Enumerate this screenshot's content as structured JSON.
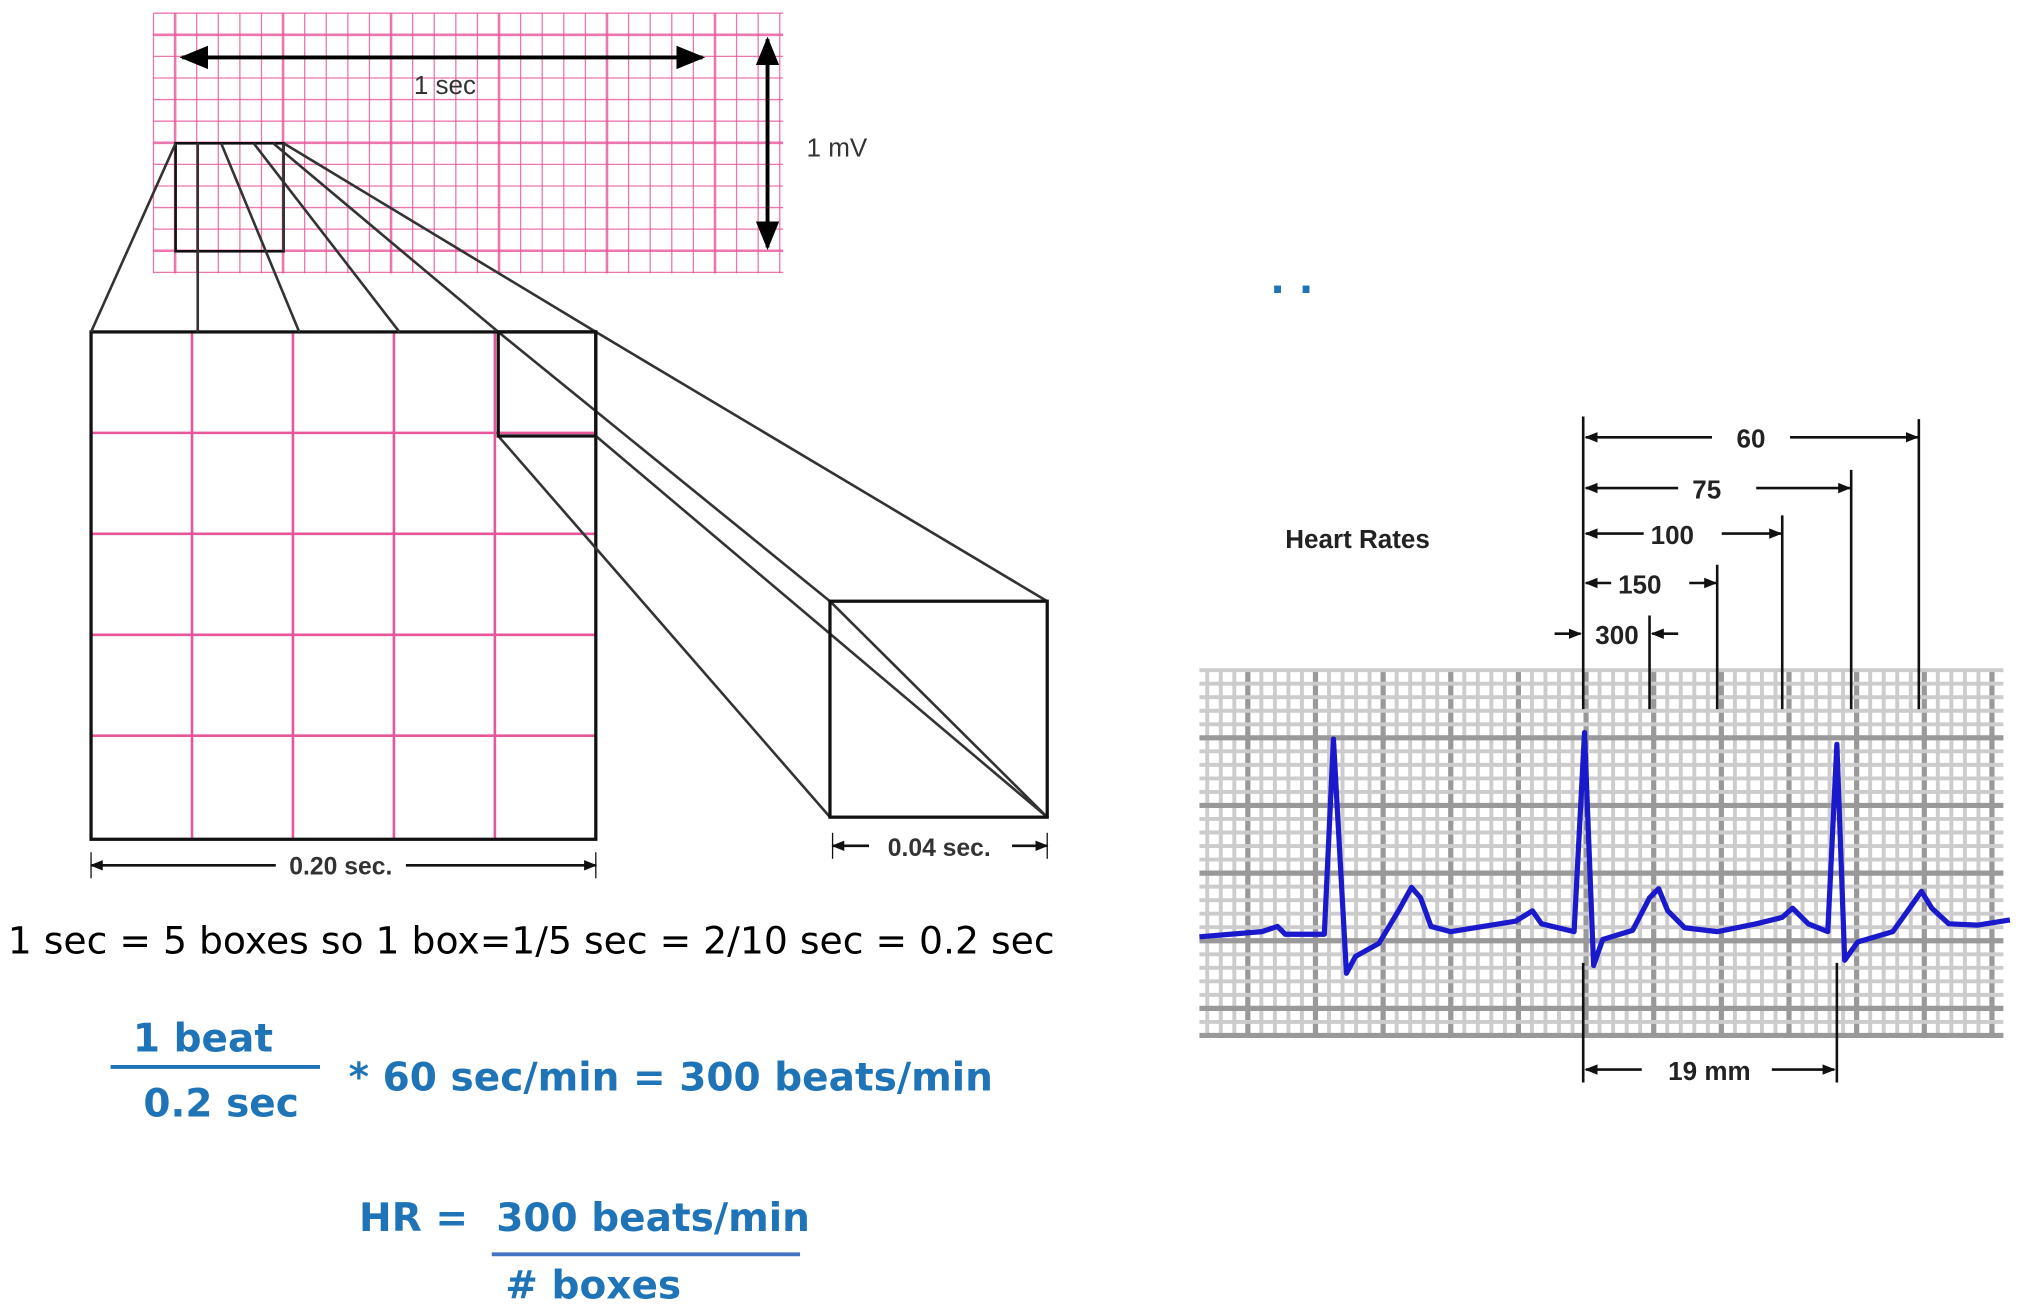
{
  "paper": {
    "one_sec": "1 sec",
    "one_mv": "1 mV",
    "big_box": "0.20 sec.",
    "small_box": "0.04 sec."
  },
  "explanation": "1 sec = 5 boxes so 1 box=1/5 sec = 2/10 sec = 0.2 sec",
  "fraction": {
    "numerator": "1 beat",
    "denominator": "0.2 sec",
    "rest": "* 60 sec/min =  300 beats/min"
  },
  "formula": {
    "lhs": "HR =",
    "numerator": "300 beats/min",
    "denominator": "# boxes"
  },
  "dots": ". .",
  "heart_rates": {
    "title": "Heart Rates",
    "labels": [
      "60",
      "75",
      "100",
      "150",
      "300"
    ],
    "distance": "19 mm"
  }
}
